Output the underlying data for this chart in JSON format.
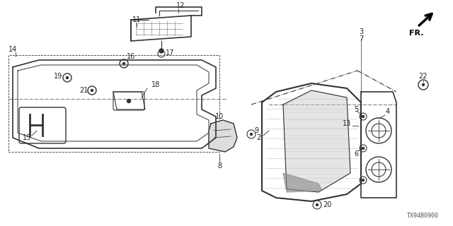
{
  "background_color": "#ffffff",
  "diagram_id": "TX94B0900",
  "line_color": "#333333",
  "text_color": "#222222",
  "font_size": 7.0,
  "fig_width": 6.4,
  "fig_height": 3.2,
  "dpi": 100
}
